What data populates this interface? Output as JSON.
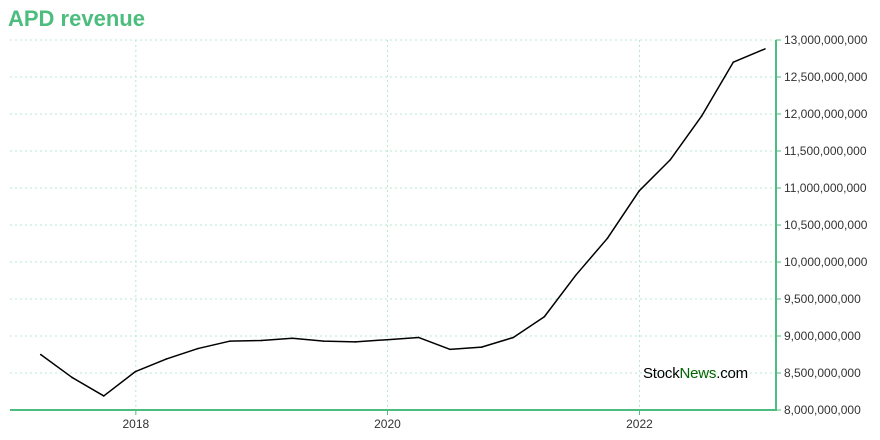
{
  "title": "APD revenue",
  "watermark": {
    "part1": "Stock",
    "part2": "News",
    "part3": ".com"
  },
  "colors": {
    "accent": "#4cbd7e",
    "line": "#000000",
    "grid": "#b8e8d0",
    "watermark_green": "#006400"
  },
  "chart_data": {
    "type": "line",
    "title": "APD revenue",
    "xlabel": "",
    "ylabel": "",
    "grid": true,
    "y_axis_side": "right",
    "xlim": [
      "2017-01-01",
      "2023-02-01"
    ],
    "ylim": [
      8000000000,
      13000000000
    ],
    "x_ticks": [
      "2018",
      "2020",
      "2022"
    ],
    "x_tick_dates": [
      "2018-01-01",
      "2020-01-01",
      "2022-01-01"
    ],
    "y_ticks": [
      "8,000,000,000",
      "8,500,000,000",
      "9,000,000,000",
      "9,500,000,000",
      "10,000,000,000",
      "10,500,000,000",
      "11,000,000,000",
      "11,500,000,000",
      "12,000,000,000",
      "12,500,000,000",
      "13,000,000,000"
    ],
    "y_tick_values": [
      8000000000,
      8500000000,
      9000000000,
      9500000000,
      10000000000,
      10500000000,
      11000000000,
      11500000000,
      12000000000,
      12500000000,
      13000000000
    ],
    "series": [
      {
        "x": [
          "2017-03-31",
          "2017-06-30",
          "2017-09-30",
          "2017-12-31",
          "2018-03-31",
          "2018-06-30",
          "2018-09-30",
          "2018-12-31",
          "2019-03-31",
          "2019-06-30",
          "2019-09-30",
          "2019-12-31",
          "2020-03-31",
          "2020-06-30",
          "2020-09-30",
          "2020-12-31",
          "2021-03-31",
          "2021-06-30",
          "2021-09-30",
          "2021-12-31",
          "2022-03-31",
          "2022-06-30",
          "2022-09-30",
          "2022-12-31"
        ],
        "values": [
          8750000000,
          8440000000,
          8190000000,
          8520000000,
          8690000000,
          8830000000,
          8930000000,
          8940000000,
          8970000000,
          8930000000,
          8920000000,
          8950000000,
          8980000000,
          8820000000,
          8850000000,
          8980000000,
          9260000000,
          9820000000,
          10320000000,
          10960000000,
          11380000000,
          11970000000,
          12700000000,
          12880000000
        ]
      }
    ]
  }
}
